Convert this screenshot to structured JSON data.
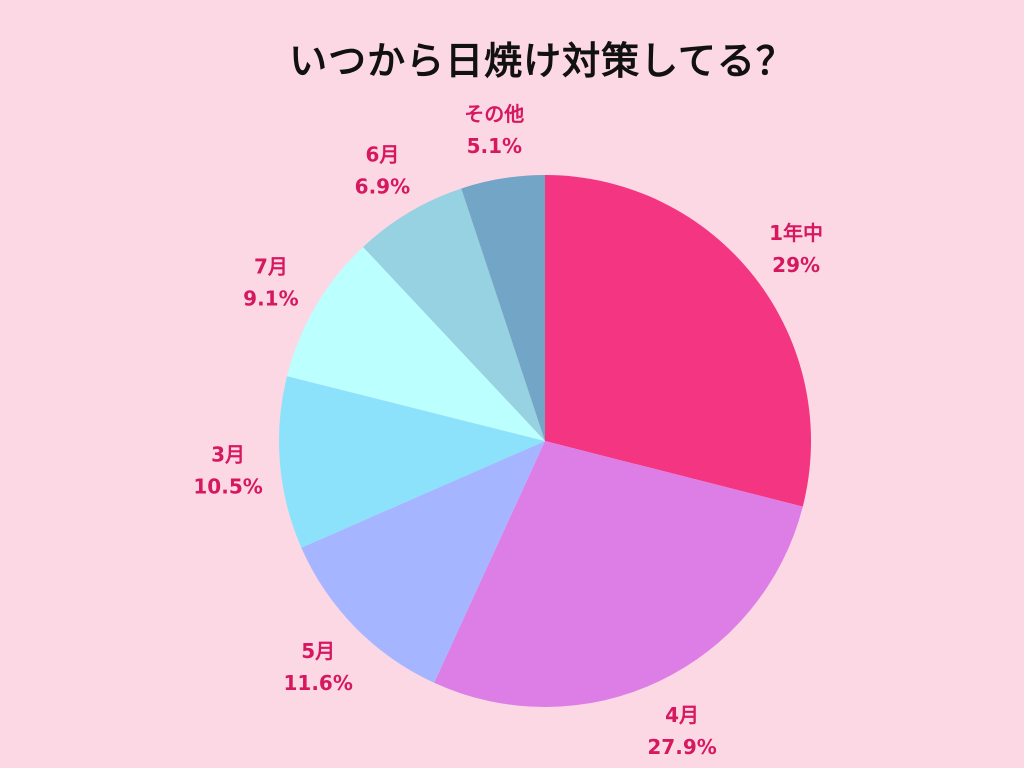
{
  "chart_data": {
    "type": "pie",
    "title": "いつから日焼け対策してる？",
    "start": "12 o'clock",
    "direction": "clockwise",
    "label_color": "#D6185F",
    "slices": [
      {
        "label": "1年中",
        "value": 29.0,
        "value_label": "29%",
        "color": "#F43581"
      },
      {
        "label": "4月",
        "value": 27.9,
        "value_label": "27.9%",
        "color": "#DD7EE6"
      },
      {
        "label": "5月",
        "value": 11.6,
        "value_label": "11.6%",
        "color": "#A6B5FF"
      },
      {
        "label": "3月",
        "value": 10.5,
        "value_label": "10.5%",
        "color": "#8DE2FB"
      },
      {
        "label": "7月",
        "value": 9.1,
        "value_label": "9.1%",
        "color": "#BCFFFF"
      },
      {
        "label": "6月",
        "value": 6.9,
        "value_label": "6.9%",
        "color": "#97D2E2"
      },
      {
        "label": "その他",
        "value": 5.1,
        "value_label": "5.1%",
        "color": "#72A5C6"
      }
    ]
  }
}
